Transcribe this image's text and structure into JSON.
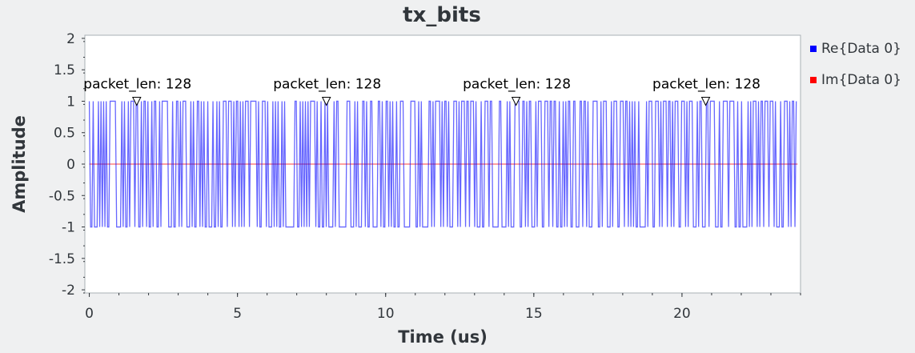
{
  "chart_data": {
    "type": "line",
    "title": "tx_bits",
    "xlabel": "Time (us)",
    "ylabel": "Amplitude",
    "xlim": [
      -0.15,
      24
    ],
    "ylim": [
      -2.05,
      2.05
    ],
    "x_ticks": [
      0,
      5,
      10,
      15,
      20
    ],
    "y_ticks": [
      2,
      1.5,
      1,
      0.5,
      0,
      -0.5,
      -1,
      -1.5,
      -2
    ],
    "y_tick_labels": [
      "2",
      "1.5",
      "1",
      "0.5",
      "0",
      "-0.5",
      "-1",
      "-1.5",
      "-2"
    ],
    "legend_position": "right",
    "series": [
      {
        "name": "Re{Data 0}",
        "color": "#0000ff",
        "x": [
          0,
          23.9
        ],
        "bits": "1001000101010100111110000101001011101100101101001011001011111000100110101110001010011010100100010010100111011101011010101110111110100111010001010100101000000011001010101011110100100101000010110000001110001010001101001100001101001101010010011100000111100101000001101011110101101000111010111011011101000100111011000001100001010001111001101011000101110011101101100100101011001100011011010001111001011100010111001110110101010010000010111001110101110110101110011101011100010110001101111000100111101111001001000010101110101101110111010001001110101101"
      },
      {
        "name": "Im{Data 0}",
        "color": "#ff0000",
        "x": [
          0,
          23.9
        ],
        "values": [
          0,
          0
        ]
      }
    ],
    "annotations": [
      {
        "text": "packet_len: 128",
        "x": 1.6,
        "y": 1
      },
      {
        "text": "packet_len: 128",
        "x": 8.0,
        "y": 1
      },
      {
        "text": "packet_len: 128",
        "x": 14.4,
        "y": 1
      },
      {
        "text": "packet_len: 128",
        "x": 20.8,
        "y": 1
      }
    ]
  }
}
